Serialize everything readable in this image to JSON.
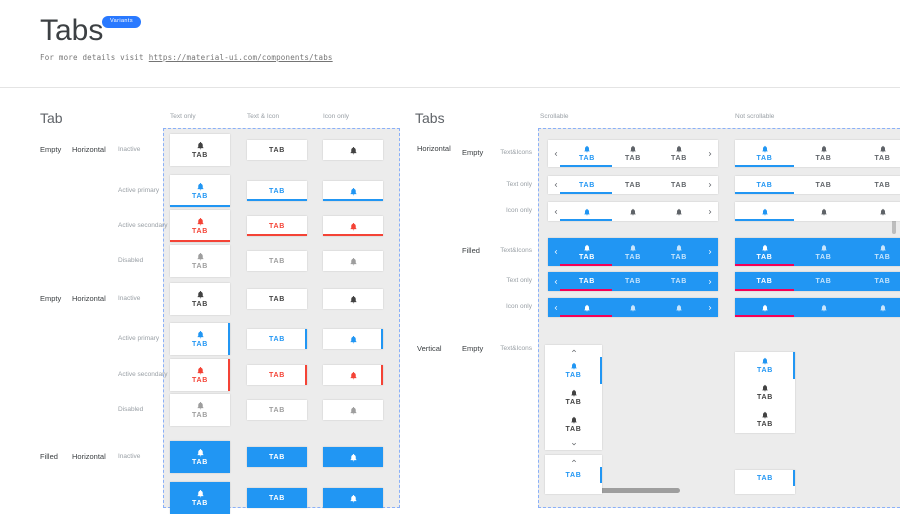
{
  "header": {
    "title": "Tabs",
    "badge": "Variants",
    "subtitle_prefix": "For more details visit",
    "subtitle_link": "https://material-ui.com/components/tabs"
  },
  "tab": {
    "label": "TAB"
  },
  "colors": {
    "primary": "#2196F3",
    "secondary": "#F44336",
    "filled_bg": "#2196F3",
    "filled_indicator": "#F50057",
    "inactive": "#424242",
    "disabled": "#9E9E9E",
    "badge_bg": "#2979FF",
    "canvas_bg": "#ECECEC",
    "canvas_border": "#8AB0F8"
  },
  "left_panel": {
    "title": "Tab",
    "columns": [
      "Text only",
      "Text & Icon",
      "Icon only"
    ],
    "groups": [
      {
        "fill_label": "Empty",
        "orientation_label": "Horizontal",
        "indicator_side": "bottom",
        "rows": [
          {
            "state_label": "Inactive",
            "style": "inactive"
          },
          {
            "state_label": "Active primary",
            "style": "primary"
          },
          {
            "state_label": "Active secondary",
            "style": "secondary"
          },
          {
            "state_label": "Disabled",
            "style": "disabled"
          }
        ]
      },
      {
        "fill_label": "Empty",
        "orientation_label": "Horizontal",
        "indicator_side": "right",
        "rows": [
          {
            "state_label": "Inactive",
            "style": "inactive"
          },
          {
            "state_label": "Active primary",
            "style": "primary"
          },
          {
            "state_label": "Active secondary",
            "style": "secondary"
          },
          {
            "state_label": "Disabled",
            "style": "disabled"
          }
        ]
      },
      {
        "fill_label": "Filled",
        "orientation_label": "Horizontal",
        "indicator_side": "bottom",
        "rows": [
          {
            "state_label": "Inactive",
            "style": "filled"
          },
          {
            "state_label": "",
            "style": "filled"
          }
        ]
      }
    ]
  },
  "right_panel": {
    "title": "Tabs",
    "columns": [
      "Scrollable",
      "Not scrollable"
    ],
    "orientation_labels": {
      "horizontal": "Horizontal",
      "vertical": "Vertical"
    },
    "horizontal_groups": [
      {
        "fill_label": "Empty",
        "filled": false,
        "rows": [
          {
            "label": "Text&Icons",
            "content": "both"
          },
          {
            "label": "Text only",
            "content": "text"
          },
          {
            "label": "Icon only",
            "content": "icon"
          }
        ]
      },
      {
        "fill_label": "Filled",
        "filled": true,
        "rows": [
          {
            "label": "Text&Icons",
            "content": "both"
          },
          {
            "label": "Text only",
            "content": "text"
          },
          {
            "label": "Icon only",
            "content": "icon"
          }
        ]
      }
    ],
    "vertical_group": {
      "fill_label": "Empty",
      "rows": [
        {
          "label": "Text&Icons",
          "content": "both"
        },
        {
          "label": "",
          "content": "text"
        }
      ]
    }
  }
}
